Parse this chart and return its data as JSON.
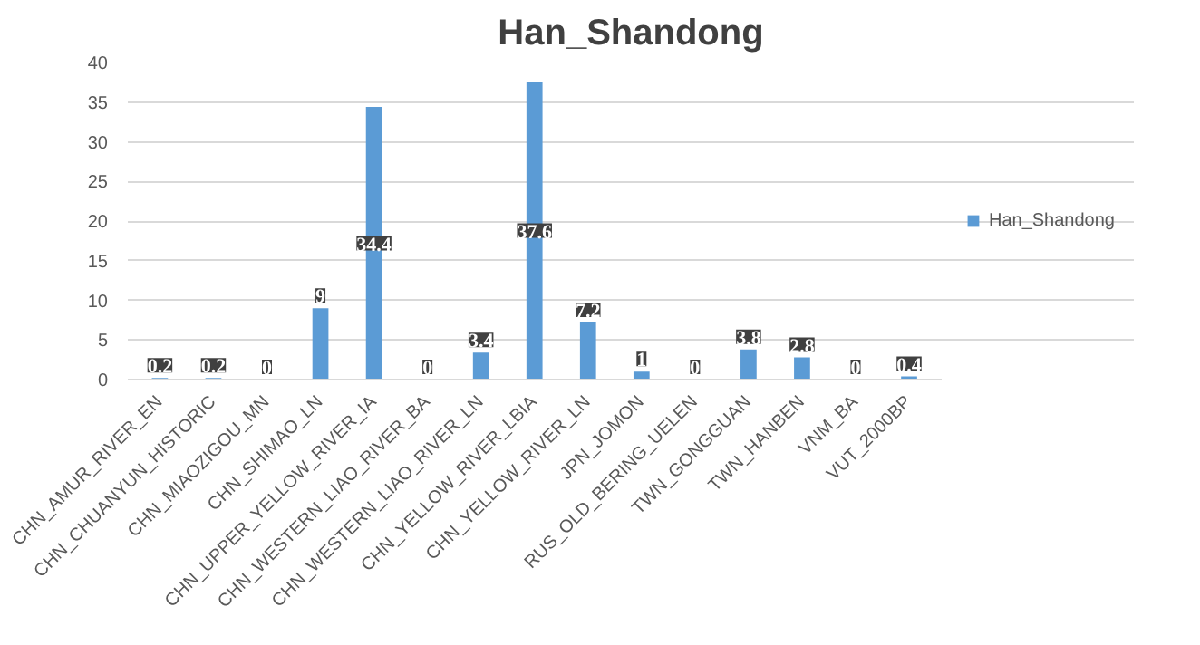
{
  "chart_data": {
    "type": "bar",
    "title": "Han_Shandong",
    "categories": [
      "CHN_AMUR_RIVER_EN",
      "CHN_CHUANYUN_HISTORIC",
      "CHN_MIAOZIGOU_MN",
      "CHN_SHIMAO_LN",
      "CHN_UPPER_YELLOW_RIVER_IA",
      "CHN_WESTERN_LIAO_RIVER_BA",
      "CHN_WESTERN_LIAO_RIVER_LN",
      "CHN_YELLOW_RIVER_LBIA",
      "CHN_YELLOW_RIVER_LN",
      "JPN_JOMON",
      "RUS_OLD_BERING_UELEN",
      "TWN_GONGGUAN",
      "TWN_HANBEN",
      "VNM_BA",
      "VUT_2000BP"
    ],
    "series": [
      {
        "name": "Han_Shandong",
        "color": "#5b9bd5",
        "values": [
          0.2,
          0.2,
          0,
          9,
          34.4,
          0,
          3.4,
          37.6,
          7.2,
          1,
          0,
          3.8,
          2.8,
          0,
          0.4
        ]
      }
    ],
    "ylim": [
      0,
      40
    ],
    "yticks": [
      0,
      5,
      10,
      15,
      20,
      25,
      30,
      35,
      40
    ],
    "grid": "y",
    "legend": "right",
    "data_labels": true
  }
}
